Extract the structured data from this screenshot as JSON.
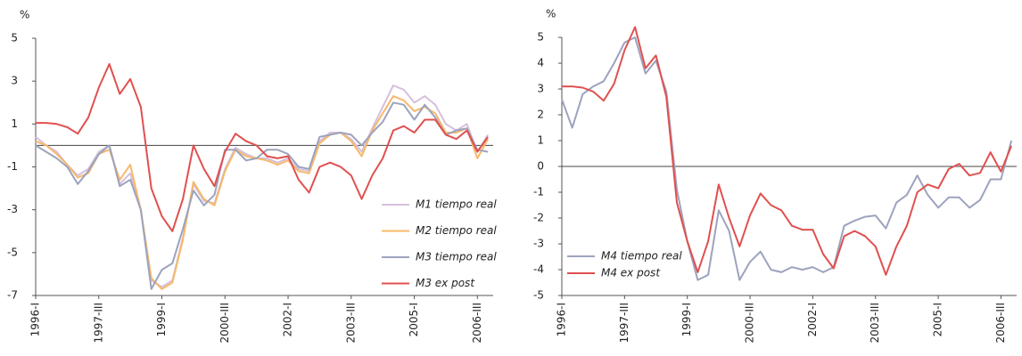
{
  "chart_data": [
    {
      "type": "line",
      "y_label": "%",
      "categories": [
        "1996-I",
        null,
        null,
        null,
        null,
        null,
        "1997-III",
        null,
        null,
        null,
        null,
        null,
        "1999-I",
        null,
        null,
        null,
        null,
        null,
        "2000-III",
        null,
        null,
        null,
        null,
        null,
        "2002-I",
        null,
        null,
        null,
        null,
        null,
        "2003-III",
        null,
        null,
        null,
        null,
        null,
        "2005-I",
        null,
        null,
        null,
        null,
        null,
        "2006-III",
        null
      ],
      "ylim": [
        -7,
        5
      ],
      "yticks": [
        -7,
        -5,
        -3,
        -1,
        1,
        3,
        5
      ],
      "legend": "center right",
      "series": [
        {
          "name": "M1 tiempo real",
          "color": "#d5c0dc",
          "values": [
            0.4,
            0.0,
            -0.3,
            -0.9,
            -1.4,
            -1.1,
            -0.3,
            0.0,
            -1.8,
            -1.3,
            -3.0,
            -6.3,
            -6.6,
            -6.3,
            -4.3,
            -1.8,
            -2.6,
            -2.7,
            -1.1,
            -0.1,
            -0.4,
            -0.6,
            -0.6,
            -0.8,
            -0.6,
            -1.1,
            -1.2,
            0.2,
            0.6,
            0.6,
            0.3,
            -0.3,
            0.8,
            1.8,
            2.8,
            2.6,
            2.0,
            2.3,
            1.9,
            1.0,
            0.7,
            1.0,
            -0.3,
            0.5
          ]
        },
        {
          "name": "M2 tiempo real",
          "color": "#f7b86a",
          "values": [
            0.2,
            0.0,
            -0.4,
            -0.9,
            -1.5,
            -1.3,
            -0.4,
            -0.2,
            -1.6,
            -0.9,
            -3.0,
            -6.2,
            -6.7,
            -6.4,
            -4.4,
            -1.7,
            -2.5,
            -2.8,
            -1.2,
            -0.2,
            -0.5,
            -0.6,
            -0.7,
            -0.9,
            -0.7,
            -1.2,
            -1.3,
            0.1,
            0.5,
            0.6,
            0.2,
            -0.5,
            0.7,
            1.5,
            2.3,
            2.1,
            1.6,
            1.8,
            1.5,
            0.6,
            0.6,
            0.8,
            -0.6,
            0.3
          ]
        },
        {
          "name": "M3 tiempo real",
          "color": "#9ca3bd",
          "values": [
            0.0,
            -0.3,
            -0.6,
            -1.0,
            -1.8,
            -1.2,
            -0.4,
            0.0,
            -1.9,
            -1.6,
            -3.0,
            -6.7,
            -5.8,
            -5.5,
            -3.9,
            -2.1,
            -2.8,
            -2.3,
            -0.2,
            -0.2,
            -0.7,
            -0.6,
            -0.2,
            -0.2,
            -0.4,
            -1.0,
            -1.1,
            0.4,
            0.5,
            0.6,
            0.5,
            0.0,
            0.6,
            1.1,
            2.0,
            1.9,
            1.2,
            1.9,
            1.3,
            0.5,
            0.7,
            0.8,
            -0.2,
            -0.3
          ]
        },
        {
          "name": "M3 ex post",
          "color": "#e0504f",
          "values": [
            1.05,
            1.05,
            1.0,
            0.85,
            0.55,
            1.3,
            2.7,
            3.8,
            2.4,
            3.1,
            1.8,
            -2.0,
            -3.3,
            -4.0,
            -2.5,
            0.0,
            -1.1,
            -1.9,
            -0.3,
            0.55,
            0.2,
            0.0,
            -0.5,
            -0.6,
            -0.5,
            -1.6,
            -2.2,
            -1.0,
            -0.8,
            -1.0,
            -1.4,
            -2.5,
            -1.4,
            -0.6,
            0.7,
            0.9,
            0.6,
            1.2,
            1.2,
            0.5,
            0.3,
            0.7,
            -0.3,
            0.4
          ]
        }
      ]
    },
    {
      "type": "line",
      "y_label": "%",
      "categories": [
        "1996-I",
        null,
        null,
        null,
        null,
        null,
        "1997-III",
        null,
        null,
        null,
        null,
        null,
        "1999-I",
        null,
        null,
        null,
        null,
        null,
        "2000-III",
        null,
        null,
        null,
        null,
        null,
        "2002-I",
        null,
        null,
        null,
        null,
        null,
        "2003-III",
        null,
        null,
        null,
        null,
        null,
        "2005-I",
        null,
        null,
        null,
        null,
        null,
        "2006-III",
        null
      ],
      "ylim": [
        -5,
        5
      ],
      "yticks": [
        -5,
        -4,
        -3,
        -2,
        -1,
        0,
        1,
        2,
        3,
        4,
        5
      ],
      "legend": "lower left",
      "series": [
        {
          "name": "M4 tiempo real",
          "color": "#9ca3bd",
          "values": [
            2.6,
            1.5,
            2.8,
            3.1,
            3.3,
            4.0,
            4.8,
            5.0,
            3.6,
            4.1,
            2.9,
            -0.9,
            -2.9,
            -4.4,
            -4.2,
            -1.7,
            -2.5,
            -4.4,
            -3.7,
            -3.3,
            -4.0,
            -4.1,
            -3.9,
            -4.0,
            -3.9,
            -4.1,
            -3.9,
            -2.3,
            -2.1,
            -1.95,
            -1.9,
            -2.4,
            -1.4,
            -1.1,
            -0.35,
            -1.1,
            -1.6,
            -1.2,
            -1.2,
            -1.6,
            -1.3,
            -0.5,
            -0.5,
            1.0
          ]
        },
        {
          "name": "M4 ex post",
          "color": "#e0504f",
          "values": [
            3.1,
            3.1,
            3.05,
            2.9,
            2.55,
            3.2,
            4.5,
            5.4,
            3.8,
            4.3,
            2.7,
            -1.4,
            -2.9,
            -4.1,
            -2.9,
            -0.7,
            -2.0,
            -3.1,
            -1.9,
            -1.05,
            -1.5,
            -1.7,
            -2.3,
            -2.45,
            -2.45,
            -3.4,
            -3.95,
            -2.7,
            -2.5,
            -2.7,
            -3.1,
            -4.2,
            -3.1,
            -2.3,
            -1.0,
            -0.7,
            -0.85,
            -0.1,
            0.1,
            -0.35,
            -0.25,
            0.55,
            -0.2,
            0.8
          ]
        }
      ]
    }
  ]
}
